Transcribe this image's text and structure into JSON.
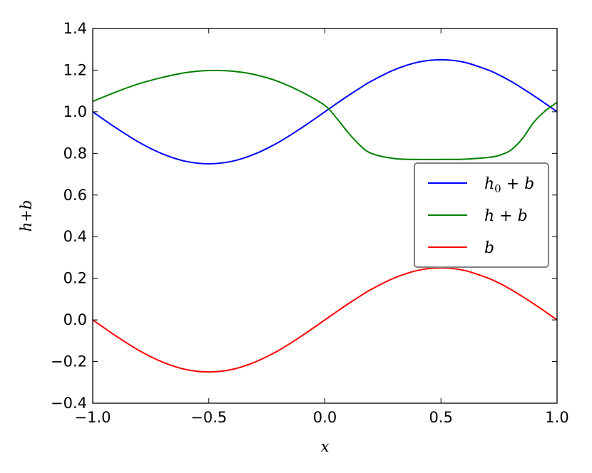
{
  "chart_data": {
    "type": "line",
    "xlabel": "x",
    "ylabel": "h+b",
    "xlim": [
      -1.0,
      1.0
    ],
    "ylim": [
      -0.4,
      1.4
    ],
    "xticks": [
      -1.0,
      -0.5,
      0.0,
      0.5,
      1.0
    ],
    "xtick_labels": [
      "−1.0",
      "−0.5",
      "0.0",
      "0.5",
      "1.0"
    ],
    "yticks": [
      -0.4,
      -0.2,
      0.0,
      0.2,
      0.4,
      0.6,
      0.8,
      1.0,
      1.2,
      1.4
    ],
    "ytick_labels": [
      "−0.4",
      "−0.2",
      "0.0",
      "0.2",
      "0.4",
      "0.6",
      "0.8",
      "1.0",
      "1.2",
      "1.4"
    ],
    "grid": false,
    "legend_position": "right",
    "x": [
      -1.0,
      -0.9,
      -0.8,
      -0.7,
      -0.6,
      -0.5,
      -0.4,
      -0.3,
      -0.2,
      -0.1,
      0.0,
      0.05,
      0.1,
      0.15,
      0.2,
      0.3,
      0.4,
      0.5,
      0.6,
      0.7,
      0.75,
      0.8,
      0.85,
      0.9,
      0.95,
      1.0
    ],
    "series": [
      {
        "name": "h_0 + b",
        "color": "#0000ff",
        "values": [
          1.0,
          0.923,
          0.853,
          0.798,
          0.762,
          0.75,
          0.762,
          0.798,
          0.853,
          0.923,
          1.0,
          1.039,
          1.077,
          1.113,
          1.147,
          1.202,
          1.238,
          1.25,
          1.238,
          1.202,
          1.177,
          1.147,
          1.113,
          1.077,
          1.039,
          1.0
        ]
      },
      {
        "name": "h + b",
        "color": "#008000",
        "values": [
          1.05,
          1.095,
          1.135,
          1.165,
          1.188,
          1.198,
          1.195,
          1.178,
          1.145,
          1.095,
          1.03,
          0.97,
          0.9,
          0.84,
          0.8,
          0.775,
          0.771,
          0.771,
          0.772,
          0.78,
          0.79,
          0.815,
          0.87,
          0.95,
          1.005,
          1.045
        ]
      },
      {
        "name": "b",
        "color": "#ff0000",
        "values": [
          0.0,
          -0.077,
          -0.147,
          -0.202,
          -0.238,
          -0.25,
          -0.238,
          -0.202,
          -0.147,
          -0.077,
          0.0,
          0.039,
          0.077,
          0.113,
          0.147,
          0.202,
          0.238,
          0.25,
          0.238,
          0.202,
          0.177,
          0.147,
          0.113,
          0.077,
          0.039,
          0.0
        ]
      }
    ]
  }
}
